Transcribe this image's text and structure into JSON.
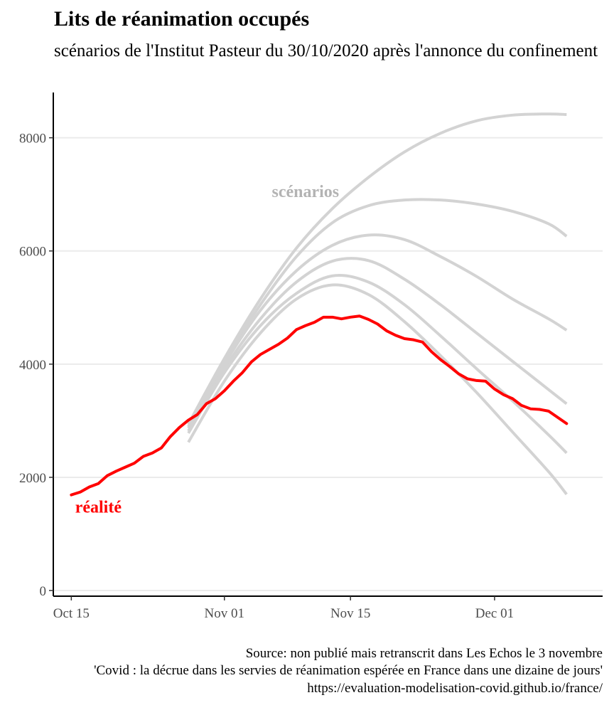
{
  "chart_data": {
    "type": "line",
    "title": "Lits de réanimation occupés",
    "subtitle": "scénarios de l'Institut Pasteur du 30/10/2020 après l'annonce du confinement",
    "caption": [
      "Source: non publié mais retranscrit dans Les Echos le 3 novembre",
      "'Covid : la décrue dans les servies de réanimation espérée en France dans une dizaine de jours'",
      "https://evaluation-modelisation-covid.github.io/france/"
    ],
    "x_ticks": [
      "2020-10-15",
      "2020-11-01",
      "2020-11-15",
      "2020-12-01"
    ],
    "x_tick_labels": [
      "Oct 15",
      "Nov 01",
      "Nov 15",
      "Dec 01"
    ],
    "xlim": [
      "2020-10-13",
      "2020-12-13"
    ],
    "y_ticks": [
      0,
      2000,
      4000,
      6000,
      8000
    ],
    "y_tick_labels": [
      "0",
      "2000",
      "4000",
      "6000",
      "8000"
    ],
    "ylim": [
      -100,
      8800
    ],
    "grid": "horizontal major",
    "annotations": [
      {
        "text": "scénarios",
        "x": "2020-11-10",
        "y": 6950,
        "color": "#b3b3b3"
      },
      {
        "text": "réalité",
        "x": "2020-10-18",
        "y": 1380,
        "color": "#ff0000"
      }
    ],
    "series": [
      {
        "color": "#ff0000",
        "x": [
          "2020-10-15",
          "2020-10-16",
          "2020-10-17",
          "2020-10-18",
          "2020-10-19",
          "2020-10-20",
          "2020-10-21",
          "2020-10-22",
          "2020-10-23",
          "2020-10-24",
          "2020-10-25",
          "2020-10-26",
          "2020-10-27",
          "2020-10-28",
          "2020-10-29",
          "2020-10-30",
          "2020-10-31",
          "2020-11-01",
          "2020-11-02",
          "2020-11-03",
          "2020-11-04",
          "2020-11-05",
          "2020-11-06",
          "2020-11-07",
          "2020-11-08",
          "2020-11-09",
          "2020-11-10",
          "2020-11-11",
          "2020-11-12",
          "2020-11-13",
          "2020-11-14",
          "2020-11-15",
          "2020-11-16",
          "2020-11-17",
          "2020-11-18",
          "2020-11-19",
          "2020-11-20",
          "2020-11-21",
          "2020-11-22",
          "2020-11-23",
          "2020-11-24",
          "2020-11-25",
          "2020-11-26",
          "2020-11-27",
          "2020-11-28",
          "2020-11-29",
          "2020-11-30",
          "2020-12-01",
          "2020-12-02",
          "2020-12-03",
          "2020-12-04",
          "2020-12-05",
          "2020-12-06",
          "2020-12-07",
          "2020-12-08",
          "2020-12-09"
        ],
        "values": [
          1690,
          1740,
          1830,
          1890,
          2030,
          2110,
          2180,
          2250,
          2370,
          2430,
          2520,
          2720,
          2880,
          3010,
          3110,
          3300,
          3390,
          3530,
          3700,
          3850,
          4040,
          4170,
          4260,
          4350,
          4460,
          4610,
          4680,
          4740,
          4830,
          4830,
          4800,
          4830,
          4850,
          4790,
          4710,
          4590,
          4510,
          4450,
          4430,
          4390,
          4220,
          4080,
          3960,
          3830,
          3740,
          3710,
          3700,
          3560,
          3460,
          3390,
          3270,
          3210,
          3200,
          3170,
          3060,
          2950
        ]
      },
      {
        "color": "#d3d3d3",
        "x": [
          "2020-10-28",
          "2020-11-01",
          "2020-11-05",
          "2020-11-09",
          "2020-11-13",
          "2020-11-17",
          "2020-11-21",
          "2020-11-25",
          "2020-11-29",
          "2020-12-03",
          "2020-12-07",
          "2020-12-09"
        ],
        "values": [
          2940,
          4100,
          5150,
          6050,
          6750,
          7300,
          7750,
          8080,
          8300,
          8400,
          8420,
          8410
        ]
      },
      {
        "color": "#d3d3d3",
        "x": [
          "2020-10-28",
          "2020-11-01",
          "2020-11-05",
          "2020-11-09",
          "2020-11-13",
          "2020-11-17",
          "2020-11-21",
          "2020-11-25",
          "2020-11-29",
          "2020-12-03",
          "2020-12-07",
          "2020-12-09"
        ],
        "values": [
          2900,
          4050,
          5050,
          5900,
          6500,
          6800,
          6900,
          6900,
          6830,
          6700,
          6480,
          6260
        ]
      },
      {
        "color": "#d3d3d3",
        "x": [
          "2020-10-28",
          "2020-11-01",
          "2020-11-05",
          "2020-11-09",
          "2020-11-13",
          "2020-11-17",
          "2020-11-21",
          "2020-11-25",
          "2020-11-29",
          "2020-12-03",
          "2020-12-07",
          "2020-12-09"
        ],
        "values": [
          2870,
          4000,
          4950,
          5650,
          6100,
          6280,
          6200,
          5900,
          5550,
          5150,
          4800,
          4600
        ]
      },
      {
        "color": "#d3d3d3",
        "x": [
          "2020-10-28",
          "2020-11-01",
          "2020-11-05",
          "2020-11-09",
          "2020-11-13",
          "2020-11-17",
          "2020-11-21",
          "2020-11-25",
          "2020-11-29",
          "2020-12-03",
          "2020-12-07",
          "2020-12-09"
        ],
        "values": [
          2820,
          3920,
          4800,
          5450,
          5820,
          5830,
          5500,
          5050,
          4550,
          4050,
          3550,
          3300
        ]
      },
      {
        "color": "#d3d3d3",
        "x": [
          "2020-10-28",
          "2020-11-01",
          "2020-11-05",
          "2020-11-09",
          "2020-11-13",
          "2020-11-17",
          "2020-11-21",
          "2020-11-25",
          "2020-11-29",
          "2020-12-03",
          "2020-12-07",
          "2020-12-09"
        ],
        "values": [
          2780,
          3850,
          4680,
          5250,
          5560,
          5450,
          5050,
          4500,
          3920,
          3350,
          2750,
          2430
        ]
      },
      {
        "color": "#d3d3d3",
        "x": [
          "2020-10-28",
          "2020-11-01",
          "2020-11-05",
          "2020-11-09",
          "2020-11-13",
          "2020-11-17",
          "2020-11-21",
          "2020-11-25",
          "2020-11-29",
          "2020-12-03",
          "2020-12-07",
          "2020-12-09"
        ],
        "values": [
          2620,
          3700,
          4550,
          5150,
          5400,
          5230,
          4750,
          4150,
          3500,
          2800,
          2100,
          1700
        ]
      }
    ]
  }
}
